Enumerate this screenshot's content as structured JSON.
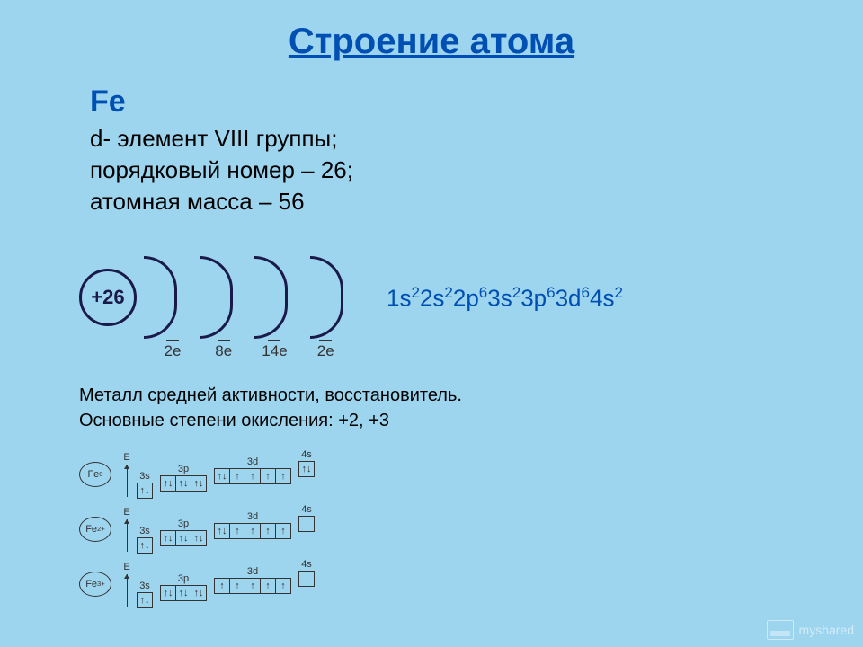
{
  "title": "Строение атома",
  "element": {
    "symbol": "Fe"
  },
  "lines": [
    "d- элемент VIII группы;",
    "порядковый номер – 26;",
    "атомная масса – 56"
  ],
  "nucleus": "+26",
  "shells": [
    "2e",
    "8e",
    "14e",
    "2e"
  ],
  "econf": [
    {
      "sub": "1s",
      "n": "2"
    },
    {
      "sub": "2s",
      "n": "2"
    },
    {
      "sub": "2p",
      "n": "6"
    },
    {
      "sub": "3s",
      "n": "2"
    },
    {
      "sub": "3p",
      "n": "6"
    },
    {
      "sub": "3d",
      "n": "6"
    },
    {
      "sub": "4s",
      "n": "2"
    }
  ],
  "desc": [
    "Металл средней активности, восстановитель.",
    "Основные степени окисления: +2, +3"
  ],
  "diagrams": [
    {
      "ion": "Fe",
      "charge": "0",
      "levels": [
        {
          "l": "3s",
          "b": [
            "↑↓"
          ]
        },
        {
          "l": "3p",
          "b": [
            "↑↓",
            "↑↓",
            "↑↓"
          ]
        },
        {
          "l": "3d",
          "b": [
            "↑↓",
            "↑",
            "↑",
            "↑",
            "↑"
          ]
        },
        {
          "l": "4s",
          "b": [
            "↑↓"
          ]
        }
      ]
    },
    {
      "ion": "Fe",
      "charge": "2+",
      "levels": [
        {
          "l": "3s",
          "b": [
            "↑↓"
          ]
        },
        {
          "l": "3p",
          "b": [
            "↑↓",
            "↑↓",
            "↑↓"
          ]
        },
        {
          "l": "3d",
          "b": [
            "↑↓",
            "↑",
            "↑",
            "↑",
            "↑"
          ]
        },
        {
          "l": "4s",
          "b": [
            " "
          ]
        }
      ]
    },
    {
      "ion": "Fe",
      "charge": "3+",
      "levels": [
        {
          "l": "3s",
          "b": [
            "↑↓"
          ]
        },
        {
          "l": "3p",
          "b": [
            "↑↓",
            "↑↓",
            "↑↓"
          ]
        },
        {
          "l": "3d",
          "b": [
            "↑",
            "↑",
            "↑",
            "↑",
            "↑"
          ]
        },
        {
          "l": "4s",
          "b": [
            " "
          ]
        }
      ]
    }
  ],
  "watermark": "myshared",
  "colors": {
    "background": "#9dd4ee",
    "title": "#004fb3",
    "text": "#000000",
    "border": "#1a1a4a",
    "econf": "#004fb3"
  }
}
